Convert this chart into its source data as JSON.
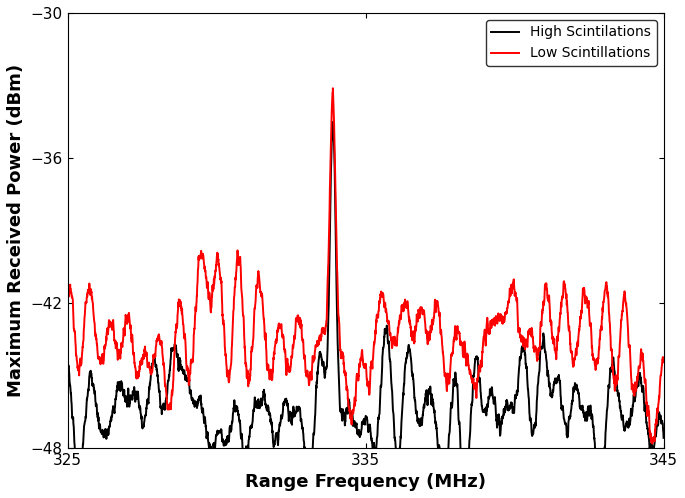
{
  "title": "",
  "xlabel": "Range Frequency (MHz)",
  "ylabel": "Maximum Received Power (dBm)",
  "xlim": [
    325,
    345
  ],
  "ylim": [
    -48,
    -30
  ],
  "xticks": [
    325,
    335,
    345
  ],
  "yticks": [
    -48,
    -42,
    -36,
    -30
  ],
  "high_color": "#000000",
  "low_color": "#ff0000",
  "high_label": "High Scintilations",
  "low_label": "Low Scintillations",
  "linewidth": 1.4,
  "figsize": [
    6.85,
    4.98
  ],
  "dpi": 100,
  "legend_loc": "upper right",
  "peak_freq": 333.9,
  "peak_high": -33.2,
  "peak_low": -32.4,
  "baseline_high": -46.5,
  "baseline_low": -43.5
}
